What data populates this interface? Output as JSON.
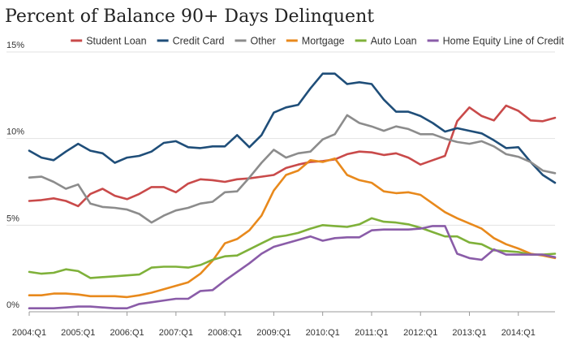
{
  "chart_data": {
    "type": "line",
    "title": "Percent of Balance 90+ Days Delinquent",
    "xlabel": "",
    "ylabel": "",
    "ylim": [
      0,
      15
    ],
    "grid": true,
    "legend_position": "top-right",
    "y_ticks": [
      {
        "value": 15,
        "label": "15%"
      },
      {
        "value": 10,
        "label": "10%"
      },
      {
        "value": 5,
        "label": "5%"
      },
      {
        "value": 0,
        "label": "0%"
      }
    ],
    "x_ticks": [
      "2004:Q1",
      "2005:Q1",
      "2006:Q1",
      "2007:Q1",
      "2008:Q1",
      "2009:Q1",
      "2010:Q1",
      "2011:Q1",
      "2012:Q1",
      "2013:Q1",
      "2014:Q1"
    ],
    "x": [
      "2004:Q1",
      "2004:Q2",
      "2004:Q3",
      "2004:Q4",
      "2005:Q1",
      "2005:Q2",
      "2005:Q3",
      "2005:Q4",
      "2006:Q1",
      "2006:Q2",
      "2006:Q3",
      "2006:Q4",
      "2007:Q1",
      "2007:Q2",
      "2007:Q3",
      "2007:Q4",
      "2008:Q1",
      "2008:Q2",
      "2008:Q3",
      "2008:Q4",
      "2009:Q1",
      "2009:Q2",
      "2009:Q3",
      "2009:Q4",
      "2010:Q1",
      "2010:Q2",
      "2010:Q3",
      "2010:Q4",
      "2011:Q1",
      "2011:Q2",
      "2011:Q3",
      "2011:Q4",
      "2012:Q1",
      "2012:Q2",
      "2012:Q3",
      "2012:Q4",
      "2013:Q1",
      "2013:Q2",
      "2013:Q3",
      "2013:Q4",
      "2014:Q1",
      "2014:Q2",
      "2014:Q3",
      "2014:Q4"
    ],
    "series": [
      {
        "name": "Student Loan",
        "color": "#c94a4a",
        "values": [
          6.4,
          6.45,
          6.55,
          6.4,
          6.1,
          6.8,
          7.1,
          6.7,
          6.5,
          6.8,
          7.2,
          7.2,
          6.9,
          7.4,
          7.65,
          7.6,
          7.5,
          7.65,
          7.7,
          7.8,
          7.9,
          8.3,
          8.5,
          8.65,
          8.7,
          8.8,
          9.1,
          9.25,
          9.2,
          9.05,
          9.15,
          8.9,
          8.5,
          8.75,
          9.0,
          11.0,
          11.8,
          11.3,
          11.05,
          11.9,
          11.6,
          11.05,
          11.0,
          11.2
        ]
      },
      {
        "name": "Credit Card",
        "color": "#1f4e79",
        "values": [
          9.3,
          8.9,
          8.75,
          9.25,
          9.7,
          9.3,
          9.15,
          8.6,
          8.9,
          9.0,
          9.25,
          9.75,
          9.85,
          9.5,
          9.45,
          9.55,
          9.55,
          10.2,
          9.5,
          10.2,
          11.5,
          11.8,
          11.95,
          12.9,
          13.75,
          13.75,
          13.15,
          13.25,
          13.15,
          12.25,
          11.55,
          11.55,
          11.3,
          10.9,
          10.4,
          10.6,
          10.45,
          10.3,
          9.9,
          9.45,
          9.5,
          8.65,
          7.9,
          7.45
        ]
      },
      {
        "name": "Other",
        "color": "#8c8c8c",
        "values": [
          7.75,
          7.8,
          7.5,
          7.1,
          7.35,
          6.25,
          6.05,
          6.0,
          5.9,
          5.65,
          5.15,
          5.55,
          5.85,
          6.0,
          6.25,
          6.35,
          6.9,
          6.95,
          7.75,
          8.6,
          9.35,
          8.9,
          9.15,
          9.25,
          9.95,
          10.25,
          11.35,
          10.9,
          10.7,
          10.45,
          10.7,
          10.55,
          10.25,
          10.25,
          10.0,
          9.8,
          9.7,
          9.85,
          9.55,
          9.1,
          8.95,
          8.65,
          8.15,
          8.0
        ]
      },
      {
        "name": "Mortgage",
        "color": "#e8891c",
        "values": [
          0.95,
          0.95,
          1.05,
          1.05,
          1.0,
          0.9,
          0.9,
          0.9,
          0.85,
          0.95,
          1.1,
          1.3,
          1.5,
          1.7,
          2.2,
          2.95,
          3.95,
          4.2,
          4.7,
          5.55,
          7.0,
          7.9,
          8.15,
          8.75,
          8.65,
          8.85,
          7.9,
          7.6,
          7.45,
          6.95,
          6.85,
          6.9,
          6.75,
          6.25,
          5.75,
          5.4,
          5.1,
          4.8,
          4.25,
          3.9,
          3.65,
          3.35,
          3.25,
          3.1
        ]
      },
      {
        "name": "Auto Loan",
        "color": "#7fb13a",
        "values": [
          2.3,
          2.2,
          2.25,
          2.45,
          2.35,
          1.95,
          2.0,
          2.05,
          2.1,
          2.15,
          2.55,
          2.6,
          2.6,
          2.55,
          2.7,
          3.0,
          3.2,
          3.25,
          3.6,
          3.95,
          4.3,
          4.4,
          4.55,
          4.8,
          5.0,
          4.95,
          4.9,
          5.05,
          5.4,
          5.2,
          5.15,
          5.05,
          4.85,
          4.6,
          4.35,
          4.35,
          4.0,
          3.9,
          3.55,
          3.5,
          3.45,
          3.3,
          3.3,
          3.35
        ]
      },
      {
        "name": "Home Equity Line of Credit",
        "color": "#8a5ca8",
        "values": [
          0.2,
          0.2,
          0.2,
          0.25,
          0.3,
          0.3,
          0.25,
          0.2,
          0.2,
          0.45,
          0.55,
          0.65,
          0.75,
          0.75,
          1.2,
          1.25,
          1.8,
          2.3,
          2.8,
          3.35,
          3.75,
          3.95,
          4.15,
          4.35,
          4.1,
          4.25,
          4.3,
          4.3,
          4.7,
          4.75,
          4.75,
          4.75,
          4.8,
          4.95,
          4.95,
          3.35,
          3.1,
          3.0,
          3.6,
          3.3,
          3.3,
          3.3,
          3.3,
          3.15
        ]
      }
    ]
  }
}
